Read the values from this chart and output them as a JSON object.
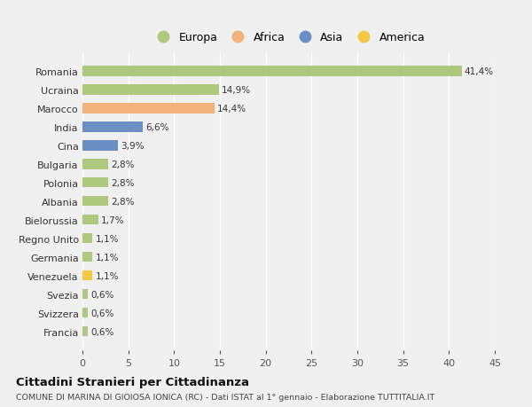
{
  "categories": [
    "Romania",
    "Ucraina",
    "Marocco",
    "India",
    "Cina",
    "Bulgaria",
    "Polonia",
    "Albania",
    "Bielorussia",
    "Regno Unito",
    "Germania",
    "Venezuela",
    "Svezia",
    "Svizzera",
    "Francia"
  ],
  "values": [
    41.4,
    14.9,
    14.4,
    6.6,
    3.9,
    2.8,
    2.8,
    2.8,
    1.7,
    1.1,
    1.1,
    1.1,
    0.6,
    0.6,
    0.6
  ],
  "labels": [
    "41,4%",
    "14,9%",
    "14,4%",
    "6,6%",
    "3,9%",
    "2,8%",
    "2,8%",
    "2,8%",
    "1,7%",
    "1,1%",
    "1,1%",
    "1,1%",
    "0,6%",
    "0,6%",
    "0,6%"
  ],
  "colors": [
    "#adc97e",
    "#adc97e",
    "#f2b27a",
    "#6b8ec4",
    "#6b8ec4",
    "#adc97e",
    "#adc97e",
    "#adc97e",
    "#adc97e",
    "#adc97e",
    "#adc97e",
    "#f5c842",
    "#adc97e",
    "#adc97e",
    "#adc97e"
  ],
  "continent_colors": {
    "Europa": "#adc97e",
    "Africa": "#f2b27a",
    "Asia": "#6b8ec4",
    "America": "#f5c842"
  },
  "xlim": [
    0,
    45
  ],
  "xticks": [
    0,
    5,
    10,
    15,
    20,
    25,
    30,
    35,
    40,
    45
  ],
  "title": "Cittadini Stranieri per Cittadinanza",
  "subtitle": "COMUNE DI MARINA DI GIOIOSA IONICA (RC) - Dati ISTAT al 1° gennaio - Elaborazione TUTTITALIA.IT",
  "bg_color": "#f0f0f0",
  "grid_color": "#ffffff",
  "bar_height": 0.55
}
